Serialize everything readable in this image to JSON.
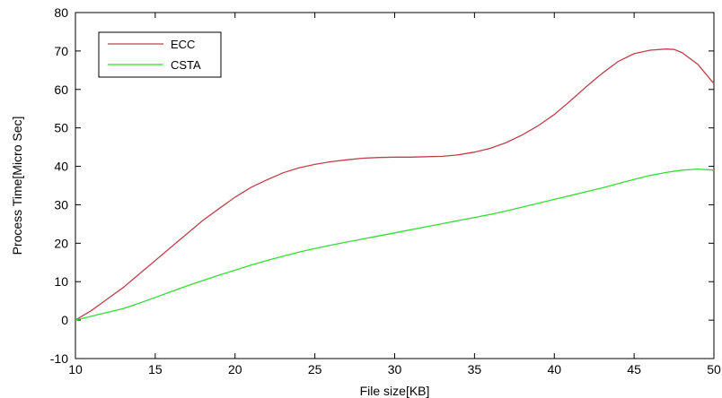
{
  "chart_data": {
    "type": "line",
    "title": "",
    "xlabel": "File size[KB]",
    "ylabel": "Process Time[Micro Sec]",
    "xlim": [
      10,
      50
    ],
    "ylim": [
      -10,
      80
    ],
    "xticks": [
      10,
      15,
      20,
      25,
      30,
      35,
      40,
      45,
      50
    ],
    "yticks": [
      -10,
      0,
      10,
      20,
      30,
      40,
      50,
      60,
      70,
      80
    ],
    "grid": false,
    "legend_position": "top-left",
    "series": [
      {
        "name": "ECC",
        "color": "#c0404a",
        "x": [
          10,
          11,
          12,
          13,
          14,
          15,
          16,
          17,
          18,
          19,
          20,
          21,
          22,
          23,
          24,
          25,
          26,
          27,
          28,
          29,
          30,
          31,
          32,
          33,
          34,
          35,
          36,
          37,
          38,
          39,
          40,
          41,
          42,
          43,
          44,
          45,
          46,
          47,
          47.5,
          48,
          49,
          50
        ],
        "y": [
          0,
          2.5,
          5.5,
          8.5,
          12,
          15.5,
          19,
          22.5,
          26,
          29,
          32,
          34.5,
          36.5,
          38.3,
          39.6,
          40.5,
          41.2,
          41.7,
          42.1,
          42.3,
          42.4,
          42.4,
          42.5,
          42.6,
          43.0,
          43.7,
          44.7,
          46.2,
          48.2,
          50.6,
          53.5,
          57.0,
          60.7,
          64.2,
          67.3,
          69.3,
          70.2,
          70.5,
          70.4,
          69.6,
          66.5,
          61.5
        ]
      },
      {
        "name": "CSTA",
        "color": "#33dd33",
        "x": [
          10,
          11,
          12,
          13,
          14,
          15,
          16,
          17,
          18,
          19,
          20,
          21,
          22,
          23,
          24,
          25,
          26,
          27,
          28,
          29,
          30,
          31,
          32,
          33,
          34,
          35,
          36,
          37,
          38,
          39,
          40,
          41,
          42,
          43,
          44,
          45,
          46,
          47,
          48,
          49,
          50
        ],
        "y": [
          0,
          1.0,
          2.0,
          3.0,
          4.4,
          5.9,
          7.4,
          8.9,
          10.3,
          11.7,
          13.0,
          14.3,
          15.5,
          16.6,
          17.7,
          18.6,
          19.5,
          20.3,
          21.1,
          21.9,
          22.7,
          23.5,
          24.3,
          25.1,
          25.9,
          26.7,
          27.5,
          28.4,
          29.4,
          30.4,
          31.4,
          32.4,
          33.4,
          34.4,
          35.5,
          36.6,
          37.6,
          38.4,
          39.0,
          39.3,
          39.0
        ]
      }
    ]
  }
}
